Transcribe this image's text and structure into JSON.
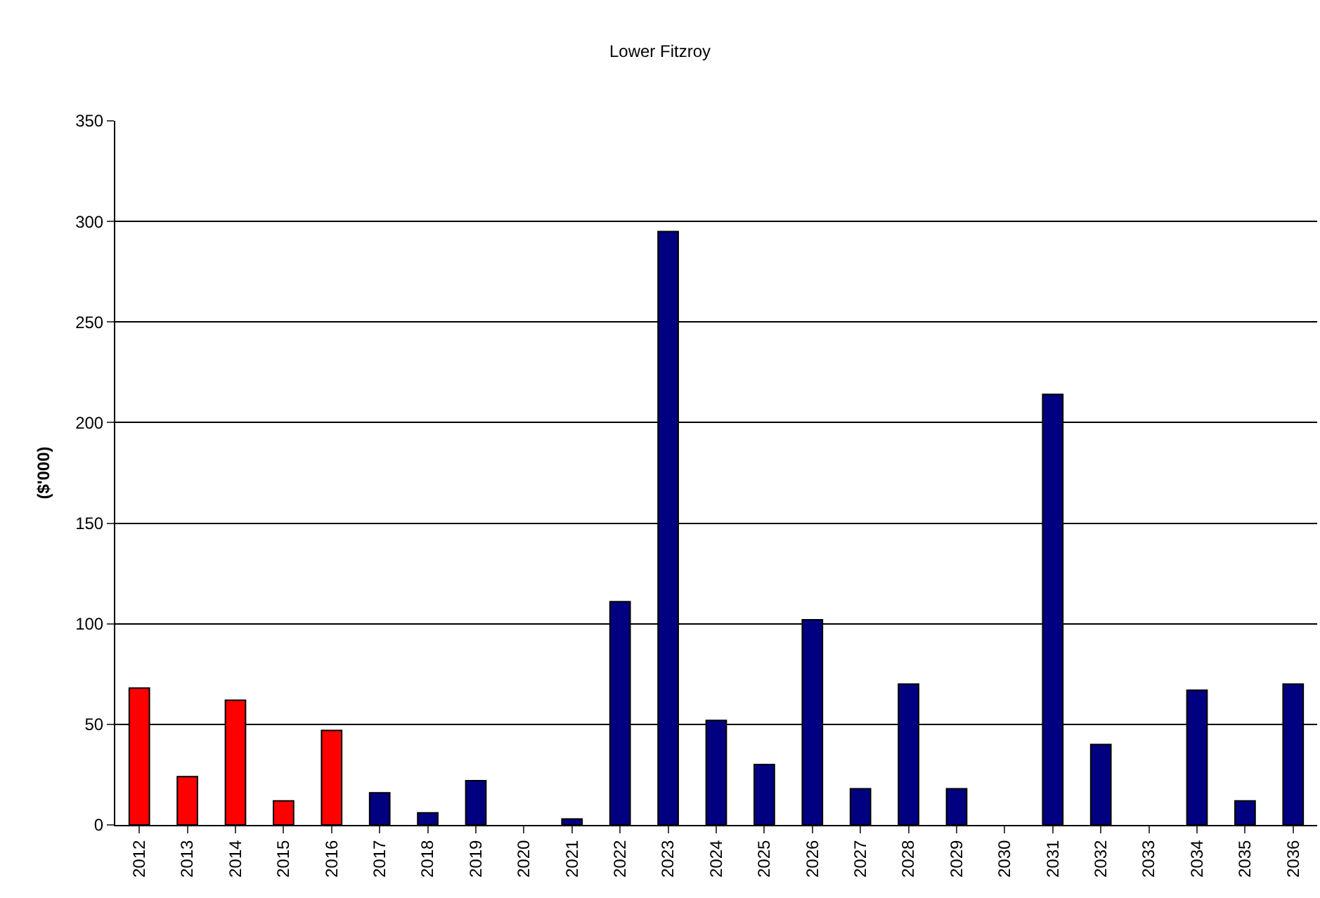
{
  "chart_data": {
    "type": "bar",
    "title": "Lower Fitzroy",
    "ylabel": "($'000)",
    "categories": [
      "2012",
      "2013",
      "2014",
      "2015",
      "2016",
      "2017",
      "2018",
      "2019",
      "2020",
      "2021",
      "2022",
      "2023",
      "2024",
      "2025",
      "2026",
      "2027",
      "2028",
      "2029",
      "2030",
      "2031",
      "2032",
      "2033",
      "2034",
      "2035",
      "2036"
    ],
    "values": [
      68,
      24,
      62,
      12,
      47,
      16,
      6,
      22,
      null,
      3,
      111,
      295,
      52,
      30,
      102,
      18,
      70,
      18,
      null,
      214,
      40,
      null,
      67,
      12,
      70
    ],
    "colors": [
      "#ff0000",
      "#ff0000",
      "#ff0000",
      "#ff0000",
      "#ff0000",
      "#000080",
      "#000080",
      "#000080",
      "#000080",
      "#000080",
      "#000080",
      "#000080",
      "#000080",
      "#000080",
      "#000080",
      "#000080",
      "#000080",
      "#000080",
      "#000080",
      "#000080",
      "#000080",
      "#000080",
      "#000080",
      "#000080",
      "#000080"
    ],
    "ylim": [
      0,
      350
    ],
    "yticks": [
      0,
      50,
      100,
      150,
      200,
      250,
      300,
      350
    ],
    "grid": "y"
  }
}
